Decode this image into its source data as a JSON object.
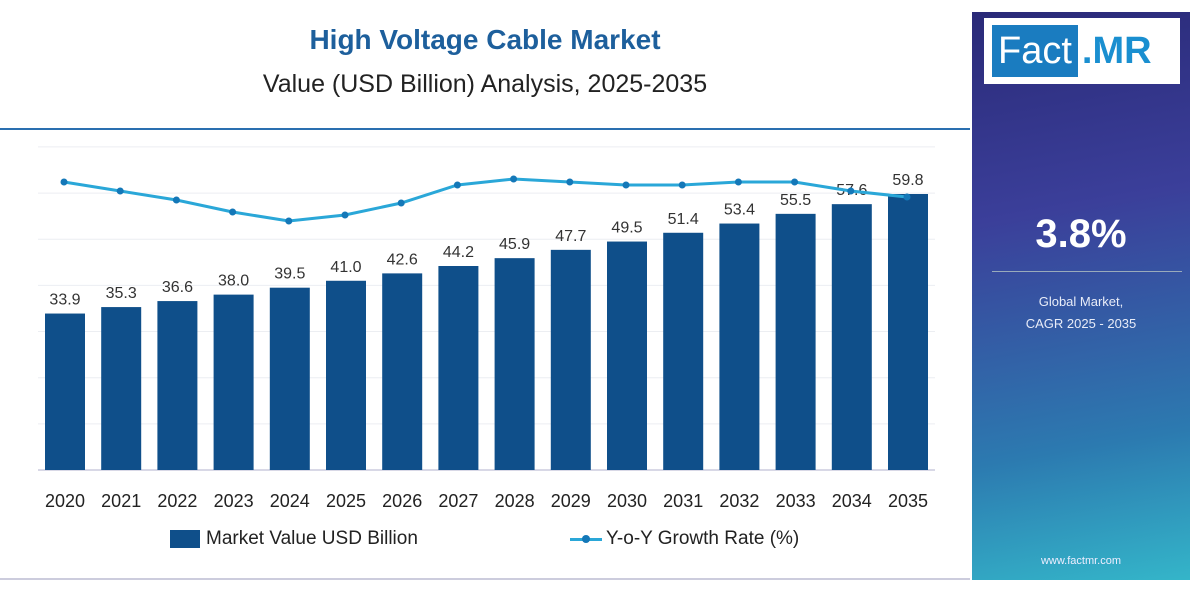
{
  "header": {
    "title": "High Voltage Cable Market",
    "subtitle": "Value (USD Billion) Analysis, 2025-2035"
  },
  "panel": {
    "logo_left": "Fact",
    "logo_right": ".MR",
    "cagr_value": "3.8%",
    "cagr_label_1": "Global Market,",
    "cagr_label_2": "CAGR 2025 - 2035",
    "url": "www.factmr.com"
  },
  "colors": {
    "bar": "#0f4f8a",
    "line": "#2aa7d8",
    "marker": "#1478b8",
    "title": "#1d5f9c"
  },
  "chart_data": {
    "type": "bar",
    "categories": [
      "2020",
      "2021",
      "2022",
      "2023",
      "2024",
      "2025",
      "2026",
      "2027",
      "2028",
      "2029",
      "2030",
      "2031",
      "2032",
      "2033",
      "2034",
      "2035"
    ],
    "series": [
      {
        "name": "Market Value USD Billion",
        "type": "bar",
        "values": [
          33.9,
          35.3,
          36.6,
          38.0,
          39.5,
          41.0,
          42.6,
          44.2,
          45.9,
          47.7,
          49.5,
          51.4,
          53.4,
          55.5,
          57.6,
          59.8
        ]
      },
      {
        "name": "Y-o-Y Growth Rate (%)",
        "type": "line",
        "values": [
          4.2,
          3.9,
          3.6,
          3.2,
          2.9,
          3.1,
          3.5,
          4.1,
          4.3,
          4.2,
          4.1,
          4.1,
          4.2,
          4.2,
          3.9,
          3.7
        ]
      }
    ],
    "ylim": [
      0,
      70
    ],
    "grid": true,
    "legend": "bottom"
  }
}
